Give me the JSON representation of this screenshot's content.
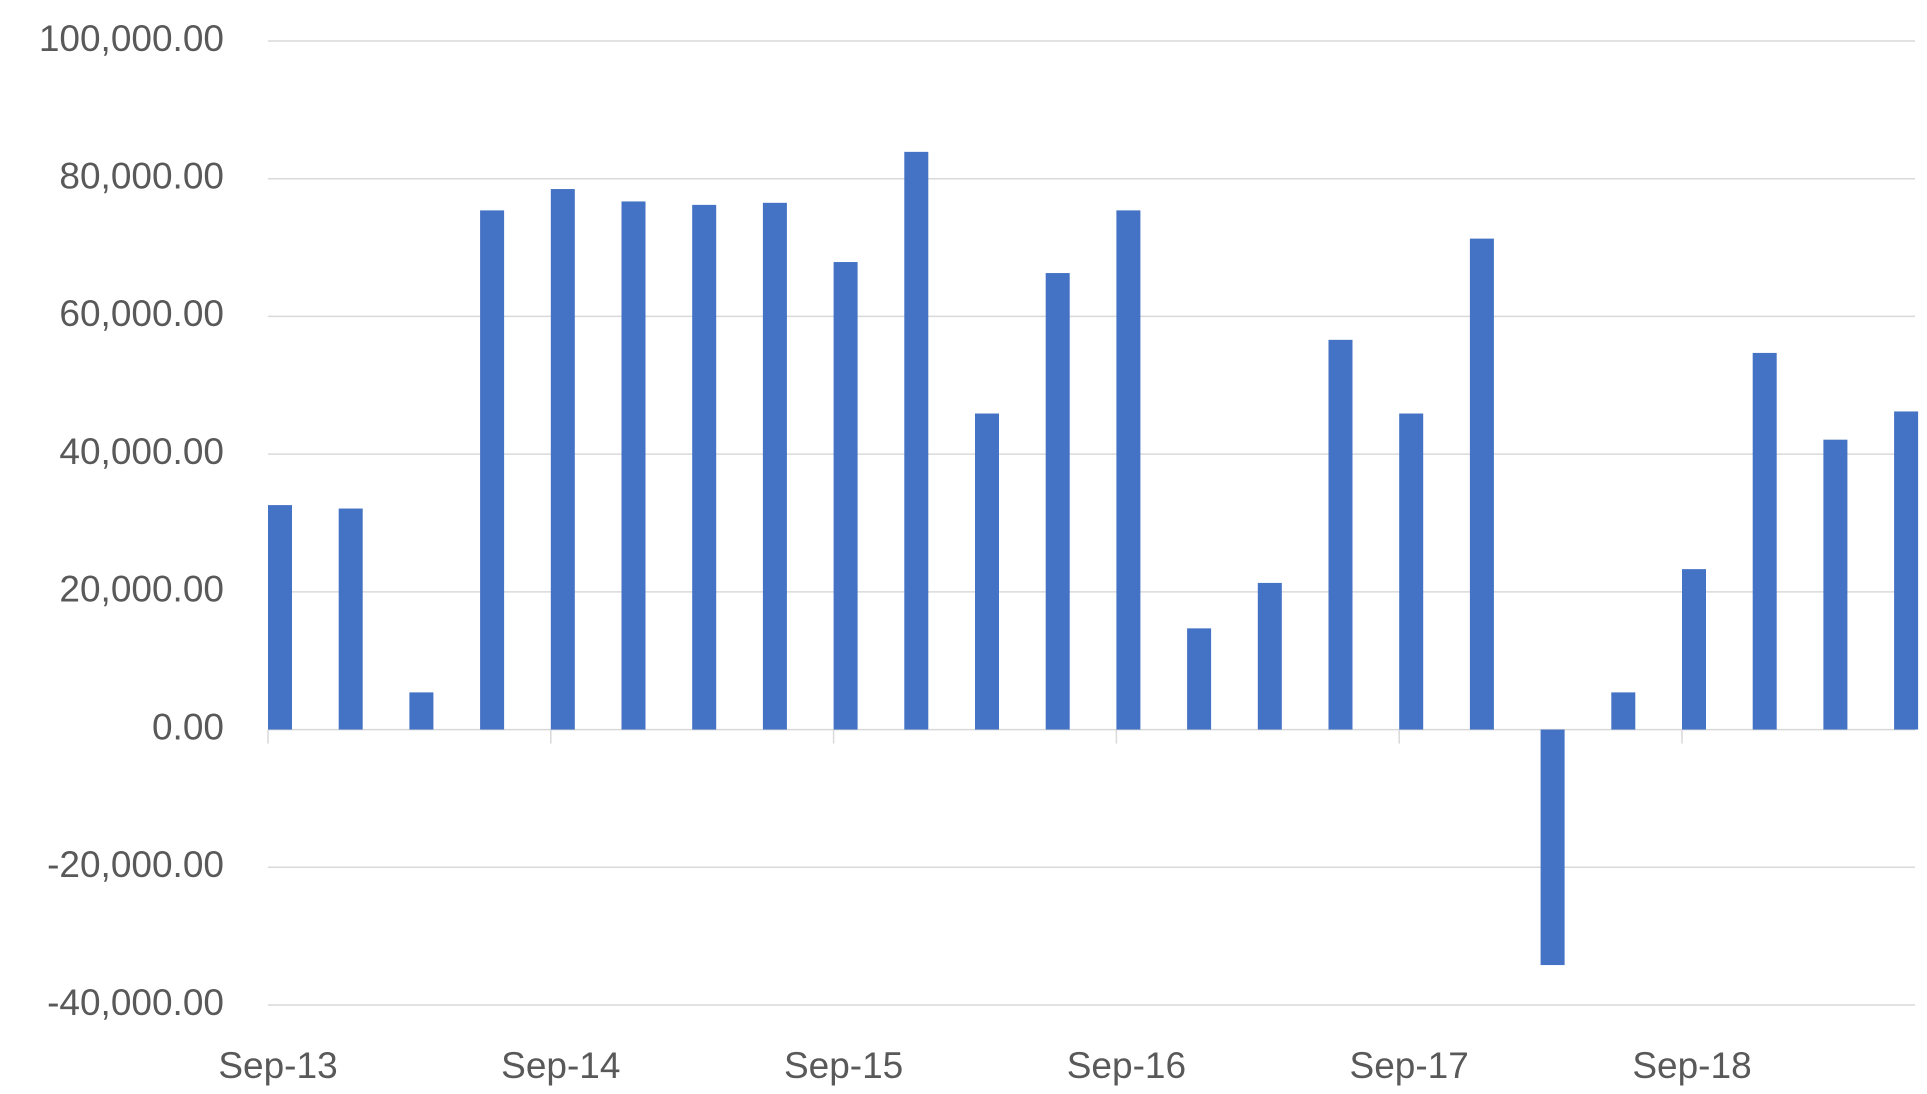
{
  "chart_data": {
    "type": "bar",
    "categories": [
      "Sep-13",
      null,
      null,
      null,
      "Sep-14",
      null,
      null,
      null,
      "Sep-15",
      null,
      null,
      null,
      "Sep-16",
      null,
      null,
      null,
      "Sep-17",
      null,
      null,
      null,
      "Sep-18",
      null,
      null,
      null
    ],
    "values": [
      32600,
      32100,
      5400,
      75400,
      78500,
      76700,
      76200,
      76500,
      67900,
      83900,
      45900,
      66300,
      75400,
      14700,
      21300,
      56600,
      45900,
      71300,
      -34200,
      5400,
      23300,
      54700,
      42100,
      46200
    ],
    "color": "#4472c4",
    "ylim": [
      -40000,
      100000
    ],
    "yticks": [
      {
        "value": -40000,
        "label": "-40,000.00"
      },
      {
        "value": -20000,
        "label": "-20,000.00"
      },
      {
        "value": 0,
        "label": "0.00"
      },
      {
        "value": 20000,
        "label": "20,000.00"
      },
      {
        "value": 40000,
        "label": "40,000.00"
      },
      {
        "value": 60000,
        "label": "60,000.00"
      },
      {
        "value": 80000,
        "label": "80,000.00"
      },
      {
        "value": 100000,
        "label": "100,000.00"
      }
    ],
    "grid": true
  }
}
